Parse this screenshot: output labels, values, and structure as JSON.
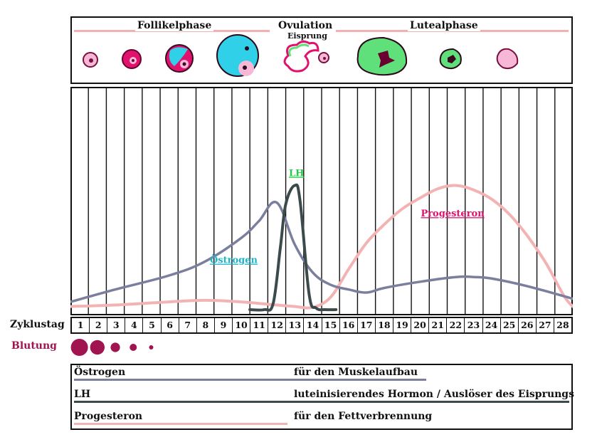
{
  "phases": {
    "follicular": "Follikelphase",
    "ovulation": "Ovulation",
    "ovulation_sub": "Eisprung",
    "luteal": "Lutealphase"
  },
  "row_labels": {
    "cycle_day": "Zyklustag",
    "bleeding": "Blutung"
  },
  "colors": {
    "estrogen": "#7b7f9e",
    "lh": "#3b4a4a",
    "progesterone": "#f3b3b3",
    "estrogen_label": "#1fb5c9",
    "lh_label": "#22cc44",
    "progesterone_label": "#e0126e",
    "bleeding": "#a0154f"
  },
  "legend": [
    {
      "name": "Östrogen",
      "description": "für den Muskelaufbau"
    },
    {
      "name": "LH",
      "description": "luteinisierendes Hormon / Auslöser des Eisprungs"
    },
    {
      "name": "Progesteron",
      "description": "für den Fettverbrennung"
    }
  ],
  "chart_data": {
    "type": "line",
    "x": [
      1,
      2,
      3,
      4,
      5,
      6,
      7,
      8,
      9,
      10,
      11,
      12,
      13,
      14,
      15,
      16,
      17,
      18,
      19,
      20,
      21,
      22,
      23,
      24,
      25,
      26,
      27,
      28
    ],
    "x_tick_labels": [
      "1",
      "2",
      "3",
      "4",
      "5",
      "6",
      "7",
      "8",
      "9",
      "10",
      "11",
      "12",
      "13",
      "14",
      "15",
      "16",
      "17",
      "18",
      "19",
      "20",
      "21",
      "22",
      "23",
      "24",
      "25",
      "26",
      "27",
      "28"
    ],
    "xlabel": "Zyklustag",
    "ylim": [
      0,
      100
    ],
    "grid": true,
    "series": [
      {
        "name": "Östrogen",
        "x": [
          0.5,
          3,
          6,
          8,
          10,
          11,
          12,
          13,
          14,
          15,
          16,
          17,
          18,
          20,
          22,
          23,
          24,
          26,
          28.5
        ],
        "y": [
          5,
          13,
          22,
          31,
          46,
          57,
          69,
          42,
          24,
          16,
          13,
          11,
          14,
          18,
          21,
          21,
          20,
          15,
          7
        ]
      },
      {
        "name": "LH",
        "x": [
          10.5,
          11.3,
          11.8,
          12.2,
          12.5,
          13,
          13.3,
          13.8,
          14.2,
          14.7,
          15.3
        ],
        "y": [
          0,
          0,
          4,
          40,
          68,
          80,
          70,
          10,
          1,
          0,
          0
        ]
      },
      {
        "name": "Progesteron",
        "x": [
          0.5,
          3,
          6,
          8,
          10,
          11,
          12,
          13,
          14,
          15,
          16,
          17,
          18,
          19,
          20,
          21,
          22,
          23,
          24,
          25,
          26,
          27,
          28,
          28.5
        ],
        "y": [
          2,
          3,
          5,
          6,
          5,
          4,
          3,
          2,
          1.5,
          8,
          26,
          43,
          55,
          65,
          72,
          78,
          80,
          77,
          71,
          61,
          47,
          30,
          9,
          2
        ]
      }
    ],
    "annotations": [
      {
        "text": "Östrogen",
        "x": 9.6,
        "y": 30
      },
      {
        "text": "LH",
        "x": 13.1,
        "y": 86
      },
      {
        "text": "Progesteron",
        "x": 21.8,
        "y": 60
      }
    ],
    "bleeding_dots": [
      {
        "day": 1,
        "size": 1.0
      },
      {
        "day": 2,
        "size": 0.85
      },
      {
        "day": 3,
        "size": 0.55
      },
      {
        "day": 4,
        "size": 0.42
      },
      {
        "day": 5,
        "size": 0.25
      }
    ]
  }
}
